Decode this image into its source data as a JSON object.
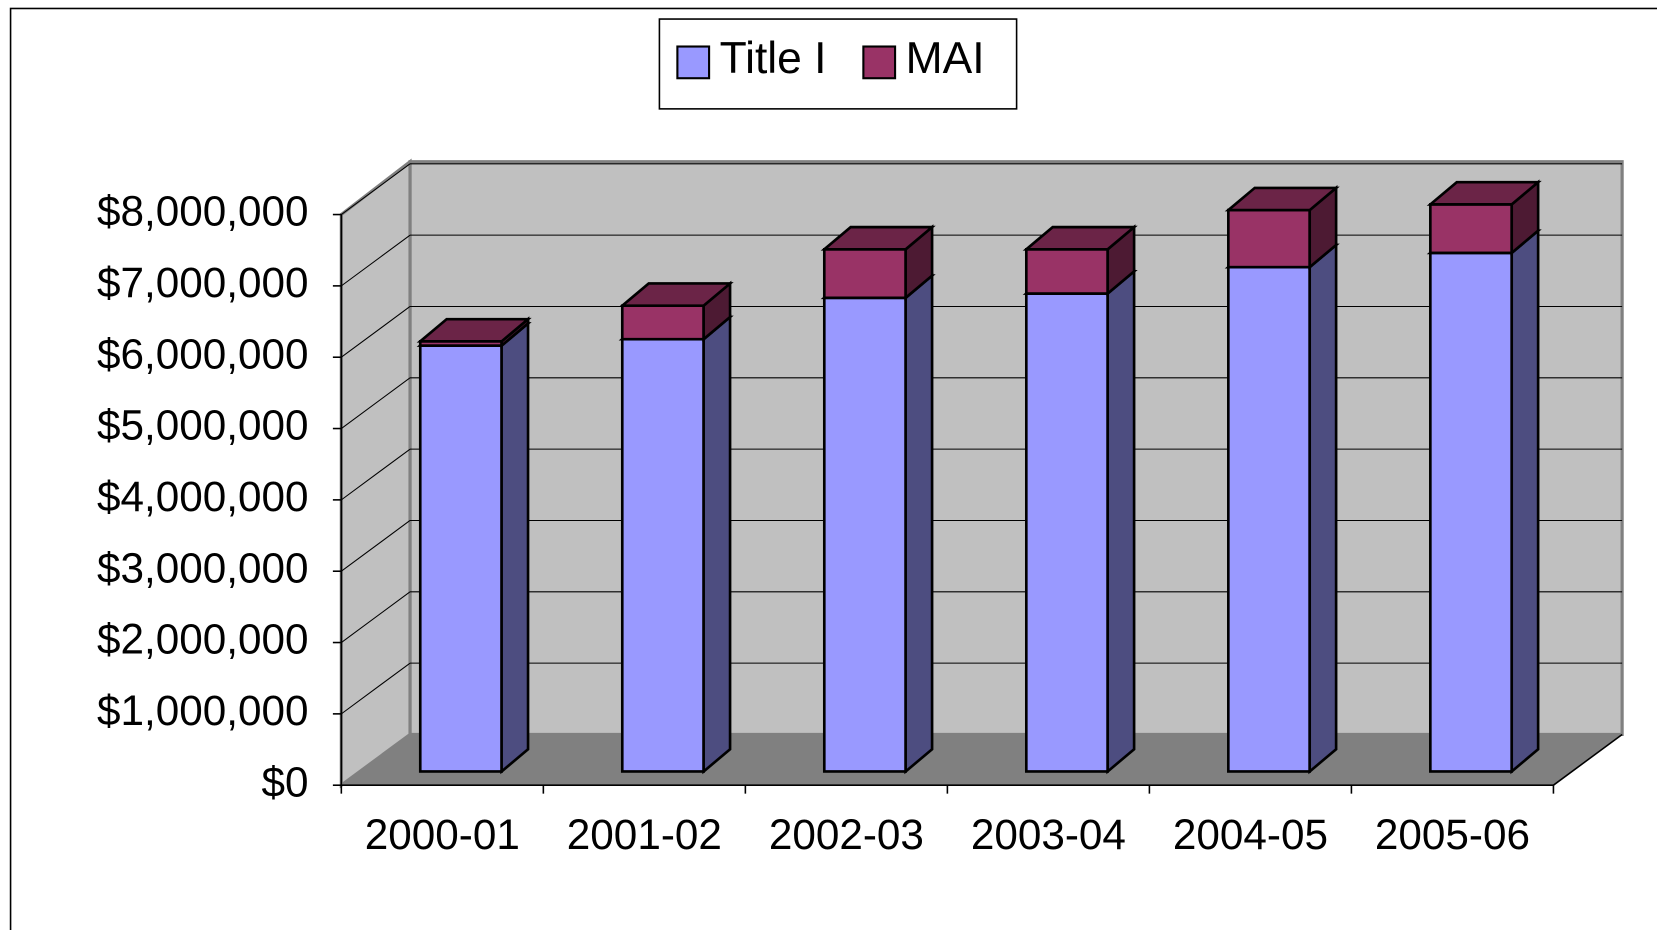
{
  "chart_data": {
    "type": "bar",
    "stacked": true,
    "legend": "top",
    "grid": true,
    "categories": [
      "2000-01",
      "2001-02",
      "2002-03",
      "2003-04",
      "2004-05",
      "2005-06"
    ],
    "series": [
      {
        "name": "Title I",
        "color": "#9999ff",
        "values": [
          5970000,
          6060000,
          6640000,
          6700000,
          7070000,
          7270000
        ]
      },
      {
        "name": "MAI",
        "color": "#993366",
        "values": [
          60000,
          470000,
          680000,
          620000,
          800000,
          680000
        ]
      }
    ],
    "ylim": [
      0,
      8000000
    ],
    "yticks": [
      {
        "value": 0,
        "label": "$0"
      },
      {
        "value": 1000000,
        "label": "$1,000,000"
      },
      {
        "value": 2000000,
        "label": "$2,000,000"
      },
      {
        "value": 3000000,
        "label": "$3,000,000"
      },
      {
        "value": 4000000,
        "label": "$4,000,000"
      },
      {
        "value": 5000000,
        "label": "$5,000,000"
      },
      {
        "value": 6000000,
        "label": "$6,000,000"
      },
      {
        "value": 7000000,
        "label": "$7,000,000"
      },
      {
        "value": 8000000,
        "label": "$8,000,000"
      }
    ]
  }
}
